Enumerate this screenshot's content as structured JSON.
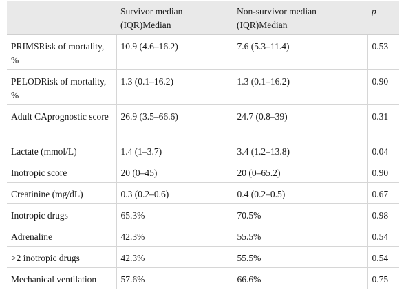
{
  "table": {
    "headers": [
      "",
      "Survivor median (IQR)Median",
      "Non-survivor median (IQR)Median",
      "p"
    ],
    "rows": [
      [
        "PRIMSRisk of mortality, %",
        "10.9 (4.6–16.2)",
        "7.6 (5.3–11.4)",
        "0.53"
      ],
      [
        "PELODRisk of mortality, %",
        "1.3 (0.1–16.2)",
        "1.3 (0.1–16.2)",
        "0.90"
      ],
      [
        "Adult CAprognostic score",
        "26.9 (3.5–66.6)",
        "24.7 (0.8–39)",
        "0.31"
      ],
      [
        "Lactate (mmol/L)",
        "1.4 (1–3.7)",
        "3.4 (1.2–13.8)",
        "0.04"
      ],
      [
        "Inotropic score",
        "20 (0–45)",
        "20 (0–65.2)",
        "0.90"
      ],
      [
        "Creatinine (mg/dL)",
        "0.3 (0.2–0.6)",
        "0.4 (0.2–0.5)",
        "0.67"
      ],
      [
        "Inotropic drugs",
        "65.3%",
        "70.5%",
        "0.98"
      ],
      [
        "Adrenaline",
        "42.3%",
        "55.5%",
        "0.54"
      ],
      [
        ">2 inotropic drugs",
        "42.3%",
        "55.5%",
        "0.54"
      ],
      [
        "Mechanical ventilation",
        "57.6%",
        "66.6%",
        "0.75"
      ]
    ]
  }
}
